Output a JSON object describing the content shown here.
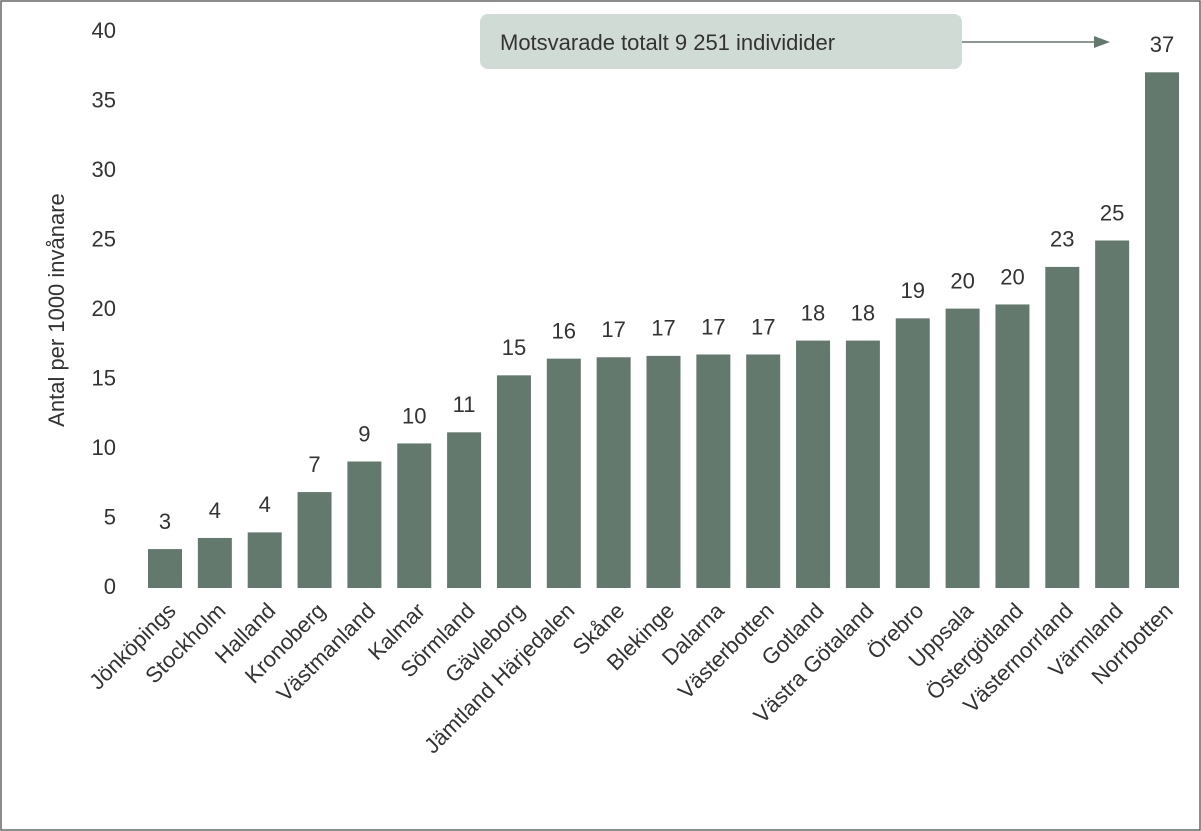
{
  "chart_data": {
    "type": "bar",
    "y_label": "Antal per 1000 invånare",
    "annotation": "Motsvarade totalt 9 251 individider",
    "categories": [
      "Jönköpings",
      "Stockholm",
      "Halland",
      "Kronoberg",
      "Västmanland",
      "Kalmar",
      "Sörmland",
      "Gävleborg",
      "Jämtland Härjedalen",
      "Skåne",
      "Blekinge",
      "Dalarna",
      "Västerbotten",
      "Gotland",
      "Västra Götaland",
      "Örebro",
      "Uppsala",
      "Östergötland",
      "Västernorrland",
      "Värmland",
      "Norrbotten"
    ],
    "values": [
      2.8,
      3.6,
      4.0,
      6.9,
      9.1,
      10.4,
      11.2,
      15.3,
      16.5,
      16.6,
      16.7,
      16.8,
      16.8,
      17.8,
      17.8,
      19.4,
      20.1,
      20.4,
      23.1,
      25.0,
      37.1
    ],
    "value_labels": [
      "3",
      "4",
      "4",
      "7",
      "9",
      "10",
      "11",
      "15",
      "16",
      "17",
      "17",
      "17",
      "17",
      "18",
      "18",
      "19",
      "20",
      "20",
      "23",
      "25",
      "37"
    ],
    "color": "#63796e",
    "ylim": [
      0,
      40
    ],
    "yticks": [
      0,
      5,
      10,
      15,
      20,
      25,
      30,
      35,
      40
    ]
  }
}
